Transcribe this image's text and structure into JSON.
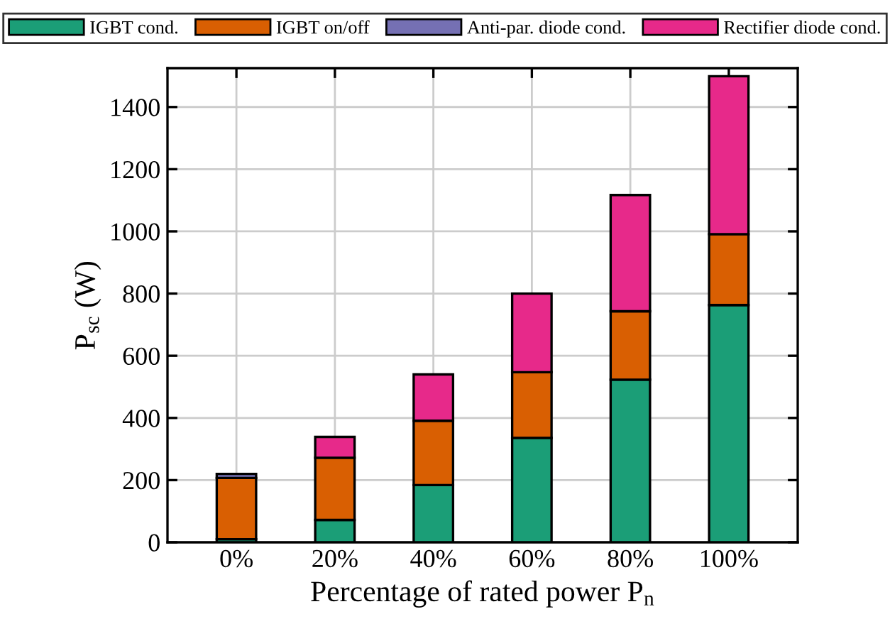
{
  "chart_data": {
    "type": "bar",
    "stacked": true,
    "xlabel": "Percentage of rated power P$_{n}$",
    "ylabel": "P$_{sc}$ (W)",
    "categories": [
      "0%",
      "20%",
      "40%",
      "60%",
      "80%",
      "100%"
    ],
    "series": [
      {
        "name": "IGBT cond.",
        "color": "#1b9e77",
        "values": [
          10,
          72,
          184,
          336,
          523,
          763
        ]
      },
      {
        "name": "IGBT on/off",
        "color": "#d95f02",
        "values": [
          197,
          200,
          207,
          211,
          220,
          228
        ]
      },
      {
        "name": "Anti-par. diode cond.",
        "color": "#7570b3",
        "values": [
          13,
          null,
          null,
          null,
          null,
          null
        ]
      },
      {
        "name": "Rectifier diode cond.",
        "color": "#e7298a",
        "values": [
          null,
          67,
          149,
          253,
          374,
          508
        ]
      }
    ],
    "ylim": [
      0,
      1525
    ],
    "yticks": [
      0,
      200,
      400,
      600,
      800,
      1000,
      1200,
      1400
    ],
    "grid": true,
    "legend": "top"
  }
}
